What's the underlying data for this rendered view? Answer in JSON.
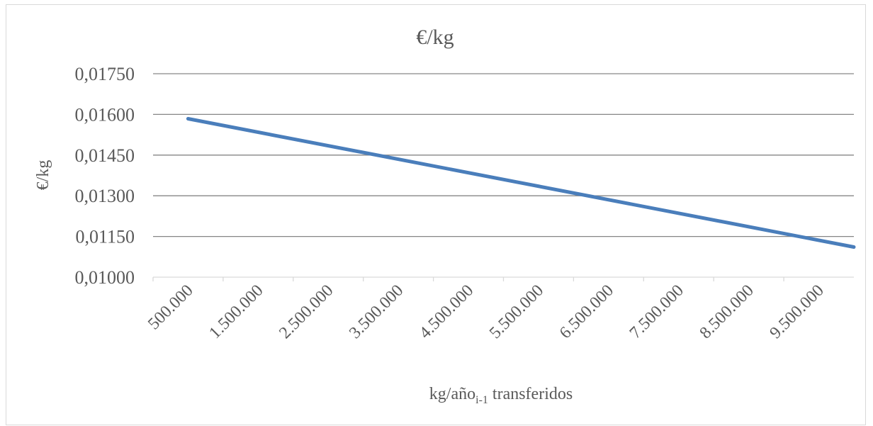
{
  "chart_data": {
    "type": "line",
    "title": "€/kg",
    "ylabel": "€/kg",
    "xlabel_main": "kg/año",
    "xlabel_sub": "i-1",
    "xlabel_tail": " transferidos",
    "categories": [
      "500.000",
      "1.500.000",
      "2.500.000",
      "3.500.000",
      "4.500.000",
      "5.500.000",
      "6.500.000",
      "7.500.000",
      "8.500.000",
      "9.500.000"
    ],
    "yticks": [
      "0,01000",
      "0,01150",
      "0,01300",
      "0,01450",
      "0,01600",
      "0,01750"
    ],
    "ylim": [
      0.01,
      0.0175
    ],
    "grid": true,
    "series": [
      {
        "color": "#4a7ebb",
        "points": [
          {
            "x": 500000,
            "y": 0.01584
          },
          {
            "x": 10000000,
            "y": 0.01111
          }
        ]
      }
    ],
    "xlim": [
      0,
      10000000
    ]
  }
}
